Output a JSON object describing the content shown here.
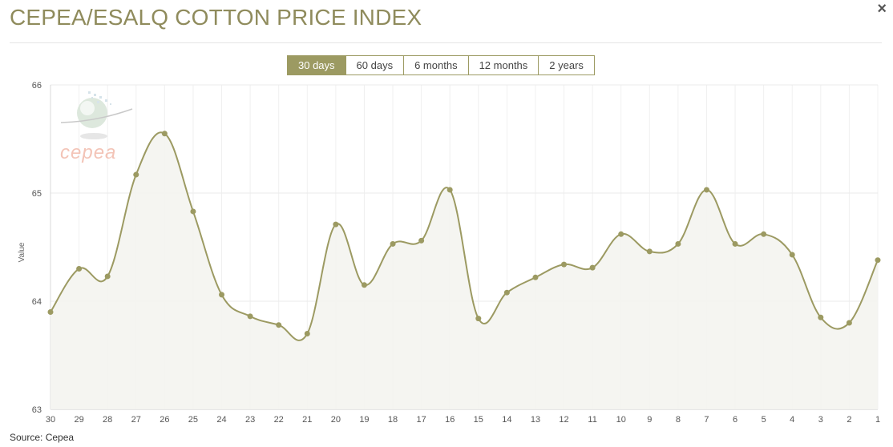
{
  "header": {
    "title": "CEPEA/ESALQ COTTON PRICE INDEX",
    "close_label": "×"
  },
  "range_selector": {
    "options": [
      "30 days",
      "60 days",
      "6 months",
      "12 months",
      "2 years"
    ],
    "selected": "30 days"
  },
  "logo": {
    "text": "cepea"
  },
  "footer": {
    "source": "Source: Cepea"
  },
  "colors": {
    "line": "#9c9a62",
    "fill": "#f4f4ef",
    "accent": "#9c9a62",
    "title": "#8f8b5c",
    "logo_text": "#f3c4b7"
  },
  "chart_data": {
    "type": "area",
    "title": "",
    "xlabel": "",
    "ylabel": "Value",
    "ylim": [
      63,
      66
    ],
    "yticks": [
      63,
      64,
      65,
      66
    ],
    "grid": true,
    "categories": [
      "30",
      "29",
      "28",
      "27",
      "26",
      "25",
      "24",
      "23",
      "22",
      "21",
      "20",
      "19",
      "18",
      "17",
      "16",
      "15",
      "14",
      "13",
      "12",
      "11",
      "10",
      "9",
      "8",
      "7",
      "6",
      "5",
      "4",
      "3",
      "2",
      "1"
    ],
    "series": [
      {
        "values": [
          63.9,
          64.3,
          64.23,
          65.17,
          65.55,
          64.83,
          64.06,
          63.86,
          63.78,
          63.7,
          64.71,
          64.15,
          64.53,
          64.56,
          65.03,
          63.84,
          64.08,
          64.22,
          64.34,
          64.31,
          64.62,
          64.46,
          64.53,
          65.03,
          64.53,
          64.62,
          64.43,
          63.85,
          63.8,
          64.38
        ]
      }
    ]
  }
}
